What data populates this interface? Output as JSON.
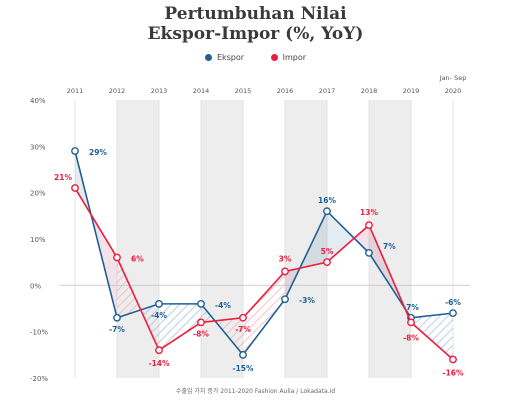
{
  "title_line1": "Pertumbuhan Nilai",
  "title_line2": "Ekspor-Impor (%, YoY)",
  "legend": [
    {
      "label": "Ekspor",
      "color": "#1f5f96"
    },
    {
      "label": "Impor",
      "color": "#ee1c3a"
    }
  ],
  "footer": "수출입 가치 증가 2011-2020 Fashion Aulia / Lokadata.id",
  "chart_data": {
    "type": "line",
    "categories": [
      "2011",
      "2012",
      "2013",
      "2014",
      "2015",
      "2016",
      "2017",
      "2018",
      "2019",
      "Jan- Sep 2020"
    ],
    "series": [
      {
        "name": "Ekspor",
        "color": "#1f5f96",
        "values": [
          29,
          -7,
          -4,
          -4,
          -15,
          -3,
          16,
          7,
          -7,
          -6
        ],
        "labels": [
          "29%",
          "-7%",
          "-4%",
          "-4%",
          "-15%",
          "-3%",
          "16%",
          "7%",
          "-7%",
          "-6%"
        ]
      },
      {
        "name": "Impor",
        "color": "#ee1c3a",
        "values": [
          21,
          6,
          -14,
          -8,
          -7,
          3,
          5,
          13,
          -8,
          -16
        ],
        "labels": [
          "21%",
          "6%",
          "-14%",
          "-8%",
          "-7%",
          "3%",
          "5%",
          "13%",
          "-8%",
          "-16%"
        ]
      }
    ],
    "ylim": [
      -20,
      40
    ],
    "yticks": [
      "40%",
      "30%",
      "20%",
      "10%",
      "0%",
      "-10%",
      "-20%"
    ],
    "grid": false,
    "shaded_columns": [
      "2012",
      "2014",
      "2016",
      "2018"
    ],
    "legend_position": "top-center"
  }
}
